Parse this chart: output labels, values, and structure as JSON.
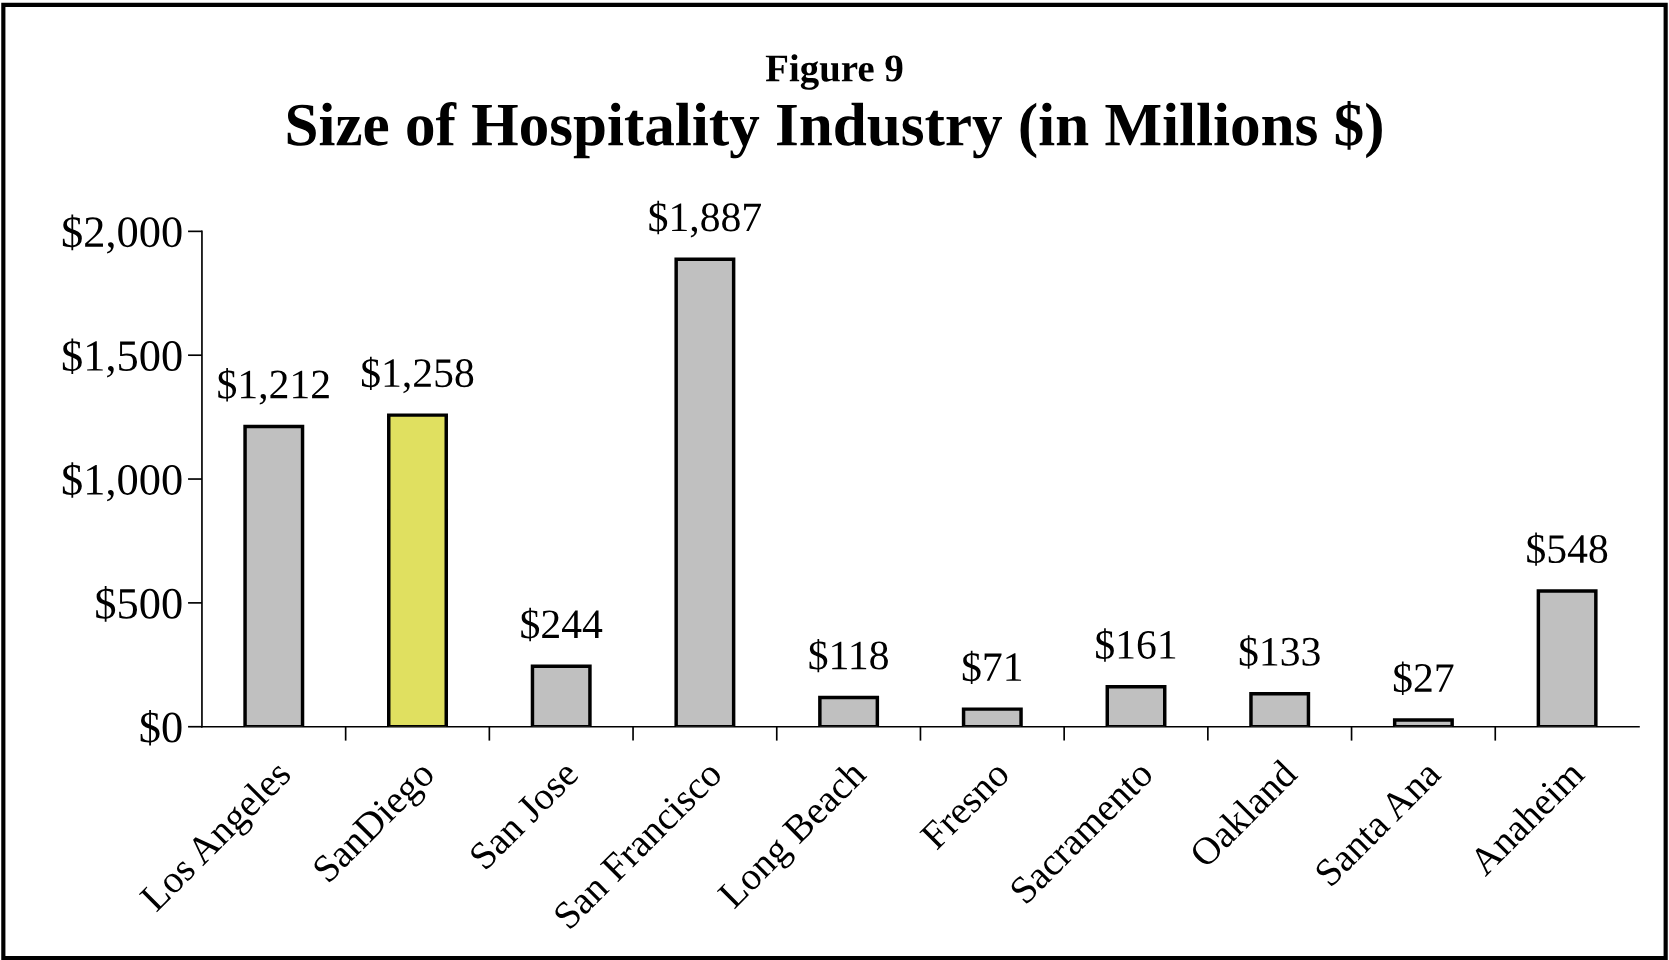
{
  "chart_data": {
    "type": "bar",
    "subtitle": "Figure 9",
    "title": "Size of Hospitality Industry (in Millions $)",
    "categories": [
      "Los Angeles",
      "SanDiego",
      "San Jose",
      "San Francisco",
      "Long Beach",
      "Fresno",
      "Sacramento",
      "Oakland",
      "Santa Ana",
      "Anaheim"
    ],
    "values": [
      1212,
      1258,
      244,
      1887,
      118,
      71,
      161,
      133,
      27,
      548
    ],
    "colors": [
      "#c0c0c0",
      "#e0e060",
      "#c0c0c0",
      "#c0c0c0",
      "#c0c0c0",
      "#c0c0c0",
      "#c0c0c0",
      "#c0c0c0",
      "#c0c0c0",
      "#c0c0c0"
    ],
    "value_labels": [
      "$1,212",
      "$1,258",
      "$244",
      "$1,887",
      "$118",
      "$71",
      "$161",
      "$133",
      "$27",
      "$548"
    ],
    "ylim": [
      0,
      2000
    ],
    "yticks": [
      {
        "value": 0,
        "label": "$0"
      },
      {
        "value": 500,
        "label": "$500"
      },
      {
        "value": 1000,
        "label": "$1,000"
      },
      {
        "value": 1500,
        "label": "$1,500"
      },
      {
        "value": 2000,
        "label": "$2,000"
      }
    ],
    "grid": false,
    "legend": false
  }
}
